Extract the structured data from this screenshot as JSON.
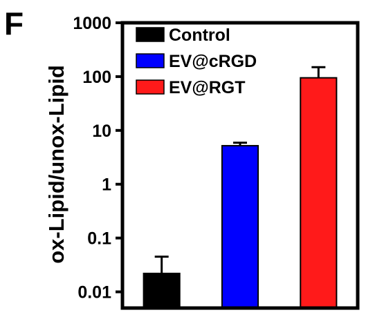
{
  "panel_letter": "F",
  "chart_data": {
    "type": "bar",
    "title": "",
    "xlabel": "",
    "ylabel": "ox-Lipid/unox-Lipid",
    "yscale": "log",
    "ylim": [
      0.005,
      1000
    ],
    "yticks": [
      0.01,
      0.1,
      1,
      10,
      100,
      1000
    ],
    "ytick_labels": [
      "0.01",
      "0.1",
      "1",
      "10",
      "100",
      "1000"
    ],
    "categories": [
      "Control",
      "EV@cRGD",
      "EV@RGT"
    ],
    "values": [
      0.022,
      5.2,
      95
    ],
    "error_upper": [
      0.045,
      5.9,
      150
    ],
    "colors": [
      "#000000",
      "#0000ff",
      "#ff1a1a"
    ],
    "legend": {
      "position": "top-left",
      "entries": [
        "Control",
        "EV@cRGD",
        "EV@RGT"
      ]
    },
    "grid": false
  }
}
